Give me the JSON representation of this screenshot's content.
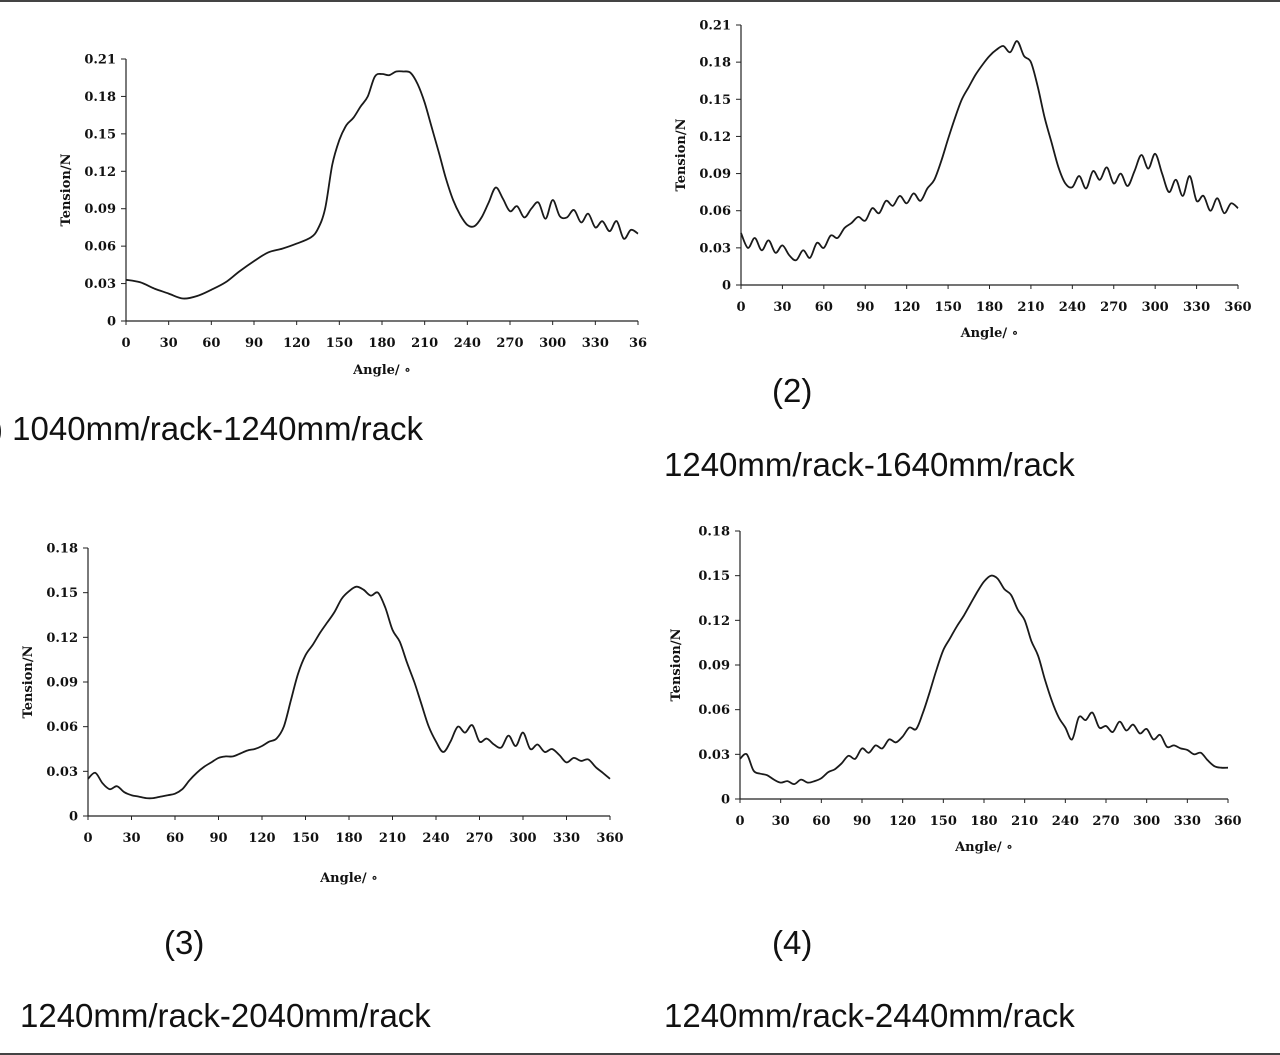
{
  "figure": {
    "captions": [
      {
        "number": ")",
        "text": "1040mm/rack-1240mm/rack"
      },
      {
        "number": "(2)",
        "text": "1240mm/rack-1640mm/rack"
      },
      {
        "number": "(3)",
        "text": "1240mm/rack-2040mm/rack"
      },
      {
        "number": "(4)",
        "text": "1240mm/rack-2440mm/rack"
      }
    ]
  },
  "chart_data": [
    {
      "type": "line",
      "title": "",
      "xlabel": "Angle/ ∘",
      "ylabel": "Tension/N",
      "xlim": [
        0,
        360
      ],
      "ylim": [
        0,
        0.21
      ],
      "xticks": [
        "0",
        "30",
        "60",
        "90",
        "120",
        "150",
        "180",
        "210",
        "240",
        "270",
        "300",
        "330",
        "36"
      ],
      "yticks": [
        "0",
        "0.03",
        "0.06",
        "0.09",
        "0.12",
        "0.15",
        "0.18",
        "0.21"
      ],
      "x": [
        0,
        10,
        20,
        30,
        40,
        50,
        60,
        70,
        80,
        90,
        100,
        110,
        120,
        130,
        135,
        140,
        145,
        150,
        155,
        160,
        165,
        170,
        175,
        180,
        185,
        190,
        195,
        200,
        205,
        210,
        215,
        220,
        225,
        230,
        235,
        240,
        245,
        250,
        255,
        260,
        265,
        270,
        275,
        280,
        285,
        290,
        295,
        300,
        305,
        310,
        315,
        320,
        325,
        330,
        335,
        340,
        345,
        350,
        355,
        360
      ],
      "series": [
        {
          "name": "1040mm/rack-1240mm/rack",
          "values": [
            0.033,
            0.031,
            0.026,
            0.022,
            0.018,
            0.02,
            0.025,
            0.031,
            0.04,
            0.048,
            0.055,
            0.058,
            0.062,
            0.067,
            0.074,
            0.09,
            0.125,
            0.145,
            0.157,
            0.163,
            0.172,
            0.18,
            0.196,
            0.198,
            0.197,
            0.2,
            0.2,
            0.199,
            0.19,
            0.175,
            0.155,
            0.135,
            0.114,
            0.097,
            0.085,
            0.077,
            0.076,
            0.083,
            0.095,
            0.107,
            0.098,
            0.088,
            0.092,
            0.083,
            0.09,
            0.095,
            0.082,
            0.097,
            0.084,
            0.083,
            0.089,
            0.079,
            0.086,
            0.075,
            0.08,
            0.072,
            0.08,
            0.066,
            0.073,
            0.07
          ]
        }
      ]
    },
    {
      "type": "line",
      "title": "",
      "xlabel": "Angle/ ∘",
      "ylabel": "Tension/N",
      "xlim": [
        0,
        360
      ],
      "ylim": [
        0,
        0.21
      ],
      "xticks": [
        "0",
        "30",
        "60",
        "90",
        "120",
        "150",
        "180",
        "210",
        "240",
        "270",
        "300",
        "330",
        "360"
      ],
      "yticks": [
        "0",
        "0.03",
        "0.06",
        "0.09",
        "0.12",
        "0.15",
        "0.18",
        "0.21"
      ],
      "x": [
        0,
        5,
        10,
        15,
        20,
        25,
        30,
        35,
        40,
        45,
        50,
        55,
        60,
        65,
        70,
        75,
        80,
        85,
        90,
        95,
        100,
        105,
        110,
        115,
        120,
        125,
        130,
        135,
        140,
        145,
        150,
        155,
        160,
        165,
        170,
        175,
        180,
        185,
        190,
        195,
        200,
        205,
        210,
        215,
        220,
        225,
        230,
        235,
        240,
        245,
        250,
        255,
        260,
        265,
        270,
        275,
        280,
        285,
        290,
        295,
        300,
        305,
        310,
        315,
        320,
        325,
        330,
        335,
        340,
        345,
        350,
        355,
        360
      ],
      "series": [
        {
          "name": "1240mm/rack-1640mm/rack",
          "values": [
            0.042,
            0.03,
            0.038,
            0.028,
            0.036,
            0.026,
            0.032,
            0.024,
            0.02,
            0.028,
            0.022,
            0.034,
            0.03,
            0.04,
            0.038,
            0.046,
            0.05,
            0.055,
            0.052,
            0.062,
            0.058,
            0.068,
            0.064,
            0.072,
            0.066,
            0.074,
            0.068,
            0.078,
            0.085,
            0.1,
            0.118,
            0.135,
            0.15,
            0.16,
            0.17,
            0.178,
            0.185,
            0.19,
            0.193,
            0.188,
            0.197,
            0.185,
            0.18,
            0.16,
            0.135,
            0.115,
            0.095,
            0.082,
            0.079,
            0.088,
            0.078,
            0.092,
            0.085,
            0.095,
            0.082,
            0.09,
            0.08,
            0.092,
            0.105,
            0.094,
            0.106,
            0.09,
            0.075,
            0.085,
            0.072,
            0.088,
            0.068,
            0.072,
            0.06,
            0.07,
            0.058,
            0.066,
            0.062
          ]
        }
      ]
    },
    {
      "type": "line",
      "title": "",
      "xlabel": "Angle/ ∘",
      "ylabel": "Tension/N",
      "xlim": [
        0,
        360
      ],
      "ylim": [
        0,
        0.18
      ],
      "xticks": [
        "0",
        "30",
        "60",
        "90",
        "120",
        "150",
        "180",
        "210",
        "240",
        "270",
        "300",
        "330",
        "360"
      ],
      "yticks": [
        "0",
        "0.03",
        "0.06",
        "0.09",
        "0.12",
        "0.15",
        "0.18"
      ],
      "x": [
        0,
        5,
        10,
        15,
        20,
        25,
        30,
        35,
        40,
        45,
        50,
        55,
        60,
        65,
        70,
        75,
        80,
        85,
        90,
        95,
        100,
        105,
        110,
        115,
        120,
        125,
        130,
        135,
        140,
        145,
        150,
        155,
        160,
        165,
        170,
        175,
        180,
        185,
        190,
        195,
        200,
        205,
        210,
        215,
        220,
        225,
        230,
        235,
        240,
        245,
        250,
        255,
        260,
        265,
        270,
        275,
        280,
        285,
        290,
        295,
        300,
        305,
        310,
        315,
        320,
        325,
        330,
        335,
        340,
        345,
        350,
        355,
        360
      ],
      "series": [
        {
          "name": "1240mm/rack-2040mm/rack",
          "values": [
            0.025,
            0.029,
            0.022,
            0.018,
            0.02,
            0.016,
            0.014,
            0.013,
            0.012,
            0.012,
            0.013,
            0.014,
            0.015,
            0.018,
            0.024,
            0.029,
            0.033,
            0.036,
            0.039,
            0.04,
            0.04,
            0.042,
            0.044,
            0.045,
            0.047,
            0.05,
            0.052,
            0.06,
            0.078,
            0.096,
            0.108,
            0.115,
            0.123,
            0.13,
            0.137,
            0.146,
            0.151,
            0.154,
            0.152,
            0.148,
            0.15,
            0.14,
            0.125,
            0.117,
            0.103,
            0.09,
            0.075,
            0.06,
            0.05,
            0.043,
            0.05,
            0.06,
            0.056,
            0.061,
            0.05,
            0.052,
            0.048,
            0.046,
            0.054,
            0.047,
            0.056,
            0.045,
            0.048,
            0.043,
            0.045,
            0.041,
            0.036,
            0.039,
            0.037,
            0.038,
            0.033,
            0.029,
            0.025
          ]
        }
      ]
    },
    {
      "type": "line",
      "title": "",
      "xlabel": "Angle/ ∘",
      "ylabel": "Tension/N",
      "xlim": [
        0,
        360
      ],
      "ylim": [
        0,
        0.18
      ],
      "xticks": [
        "0",
        "30",
        "60",
        "90",
        "120",
        "150",
        "180",
        "210",
        "240",
        "270",
        "300",
        "330",
        "360"
      ],
      "yticks": [
        "0",
        "0.03",
        "0.06",
        "0.09",
        "0.12",
        "0.15",
        "0.18"
      ],
      "x": [
        0,
        5,
        10,
        15,
        20,
        25,
        30,
        35,
        40,
        45,
        50,
        55,
        60,
        65,
        70,
        75,
        80,
        85,
        90,
        95,
        100,
        105,
        110,
        115,
        120,
        125,
        130,
        135,
        140,
        145,
        150,
        155,
        160,
        165,
        170,
        175,
        180,
        185,
        190,
        195,
        200,
        205,
        210,
        215,
        220,
        225,
        230,
        235,
        240,
        245,
        250,
        255,
        260,
        265,
        270,
        275,
        280,
        285,
        290,
        295,
        300,
        305,
        310,
        315,
        320,
        325,
        330,
        335,
        340,
        345,
        350,
        355,
        360
      ],
      "series": [
        {
          "name": "1240mm/rack-2440mm/rack",
          "values": [
            0.027,
            0.03,
            0.019,
            0.017,
            0.016,
            0.013,
            0.011,
            0.012,
            0.01,
            0.013,
            0.011,
            0.012,
            0.014,
            0.018,
            0.02,
            0.024,
            0.029,
            0.027,
            0.034,
            0.031,
            0.036,
            0.034,
            0.04,
            0.038,
            0.042,
            0.048,
            0.047,
            0.058,
            0.072,
            0.087,
            0.1,
            0.108,
            0.116,
            0.123,
            0.131,
            0.139,
            0.146,
            0.15,
            0.148,
            0.141,
            0.137,
            0.127,
            0.12,
            0.106,
            0.096,
            0.08,
            0.066,
            0.055,
            0.048,
            0.04,
            0.055,
            0.053,
            0.058,
            0.048,
            0.049,
            0.045,
            0.052,
            0.046,
            0.05,
            0.044,
            0.047,
            0.04,
            0.043,
            0.035,
            0.036,
            0.034,
            0.033,
            0.03,
            0.031,
            0.026,
            0.022,
            0.021,
            0.021
          ]
        }
      ]
    }
  ]
}
